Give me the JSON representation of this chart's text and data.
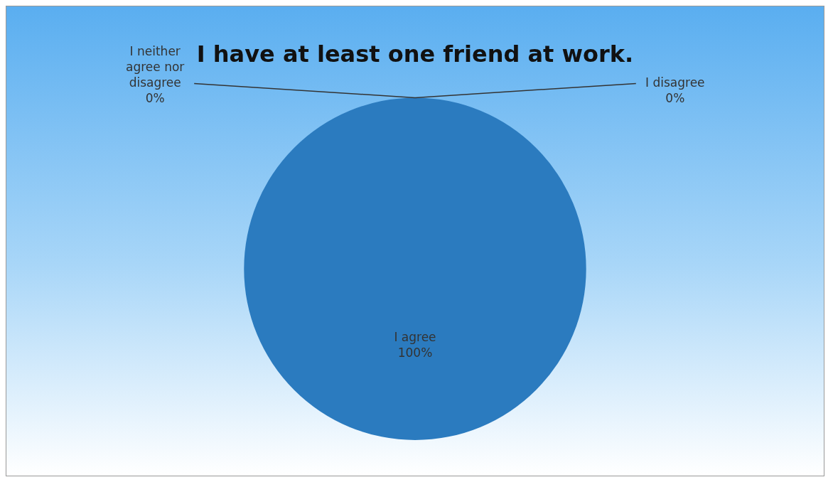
{
  "chart_data": {
    "type": "pie",
    "title": "I have at least one friend at work.",
    "categories": [
      "I agree",
      "I disagree",
      "I neither agree nor disagree"
    ],
    "values": [
      100,
      0,
      0
    ],
    "colors": [
      "#2b7bbf",
      "#a5a5a5",
      "#ed7d31"
    ],
    "value_labels": [
      "100%",
      "0%",
      "0%"
    ],
    "legend": false
  }
}
